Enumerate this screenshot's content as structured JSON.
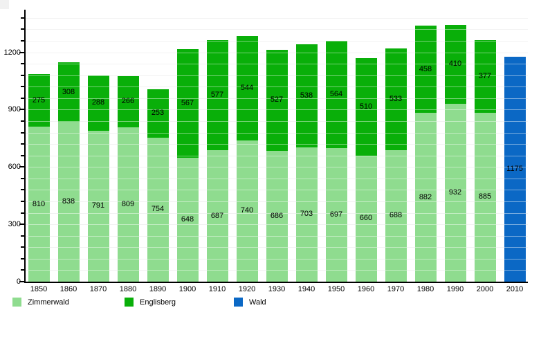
{
  "chart_data": {
    "type": "bar",
    "stacked": true,
    "title": "",
    "xlabel": "",
    "ylabel": "",
    "categories": [
      "1850",
      "1860",
      "1870",
      "1880",
      "1890",
      "1900",
      "1910",
      "1920",
      "1930",
      "1940",
      "1950",
      "1960",
      "1970",
      "1980",
      "1990",
      "2000",
      "2010"
    ],
    "series": [
      {
        "name": "Zimmerwald",
        "color": "#8fdc8f",
        "values": [
          810,
          838,
          791,
          809,
          754,
          648,
          687,
          740,
          686,
          703,
          697,
          660,
          688,
          882,
          932,
          885,
          null
        ]
      },
      {
        "name": "Englisberg",
        "color": "#09af09",
        "values": [
          275,
          308,
          288,
          266,
          253,
          567,
          577,
          544,
          527,
          538,
          564,
          510,
          533,
          458,
          410,
          377,
          null
        ]
      },
      {
        "name": "Wald",
        "color": "#0b68c5",
        "values": [
          null,
          null,
          null,
          null,
          null,
          null,
          null,
          null,
          null,
          null,
          null,
          null,
          null,
          null,
          null,
          null,
          1175
        ]
      }
    ],
    "y_major_ticks": [
      0,
      300,
      600,
      900,
      1200
    ],
    "ylim": [
      0,
      1420
    ],
    "grid_minor_step": 60,
    "grid": true,
    "legend_position": "bottom"
  },
  "legend": {
    "items": [
      {
        "label": "Zimmerwald",
        "color": "#8fdc8f"
      },
      {
        "label": "Englisberg",
        "color": "#09af09"
      },
      {
        "label": "Wald",
        "color": "#0b68c5"
      }
    ]
  },
  "colors": {
    "background": "#ffffff",
    "gridline": "#e8e8e8",
    "axis": "#000000",
    "label_text": "#000000"
  }
}
